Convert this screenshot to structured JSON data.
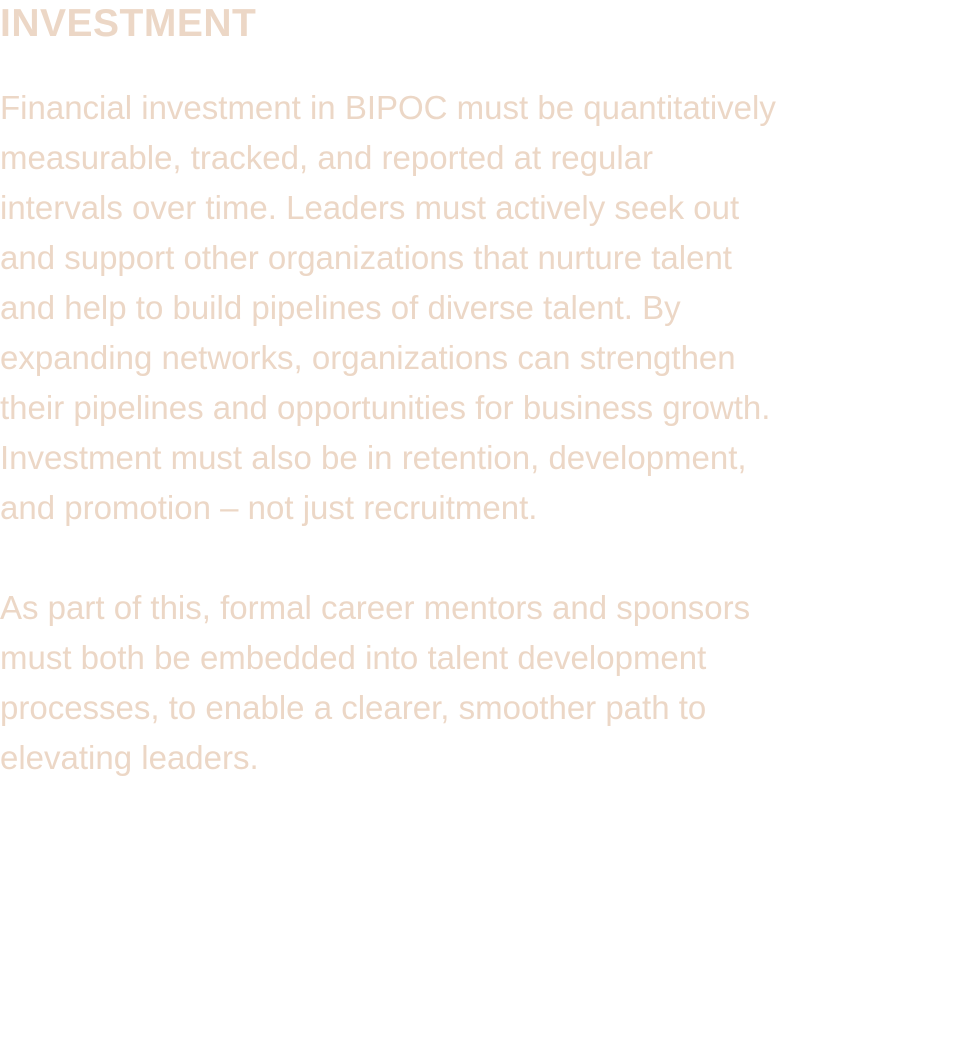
{
  "section": {
    "heading": "INVESTMENT",
    "paragraphs": [
      "Financial investment in BIPOC must be quantitatively\nmeasurable, tracked, and reported at regular\nintervals over time. Leaders must actively seek out\nand support other organizations that nurture talent\nand help to build pipelines of diverse talent. By\nexpanding networks, organizations can strengthen\ntheir pipelines and opportunities for business growth.\nInvestment must also be in retention, development,\nand promotion – not just recruitment.",
      "As part of this, formal career mentors and sponsors\nmust both be embedded into talent development\nprocesses, to enable a clearer, smoother path to\nelevating leaders."
    ]
  },
  "colors": {
    "text": "#ecd7c6",
    "background": "#ffffff"
  }
}
